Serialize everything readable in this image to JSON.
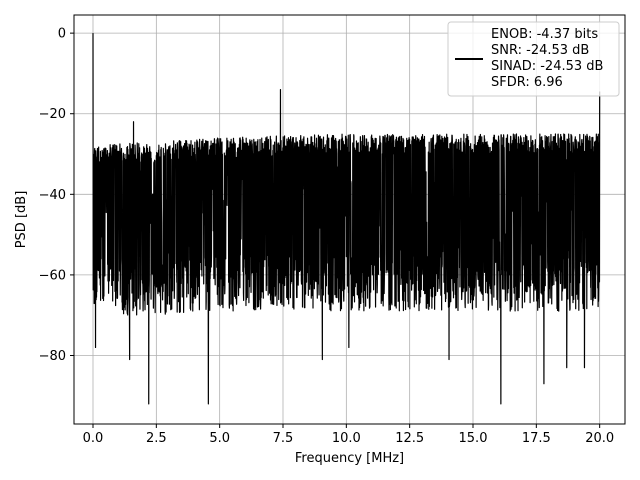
{
  "chart_data": {
    "type": "line",
    "title": "",
    "xlabel": "Frequency [MHz]",
    "ylabel": "PSD [dB]",
    "xlim": [
      -0.75,
      21.0
    ],
    "ylim": [
      -97,
      4.5
    ],
    "x_ticks": [
      0.0,
      2.5,
      5.0,
      7.5,
      10.0,
      12.5,
      15.0,
      17.5,
      20.0
    ],
    "x_tick_labels": [
      "0.0",
      "2.5",
      "5.0",
      "7.5",
      "10.0",
      "12.5",
      "15.0",
      "17.5",
      "20.0"
    ],
    "y_ticks": [
      0,
      -20,
      -40,
      -60,
      -80
    ],
    "y_tick_labels": [
      "0",
      "−20",
      "−40",
      "−60",
      "−80"
    ],
    "grid": true,
    "line_color": "#000000",
    "legend": {
      "placement": "top-right",
      "entries": [
        "ENOB: -4.37 bits",
        "SNR: -24.53 dB",
        "SINAD: -24.53 dB",
        "SFDR: 6.96"
      ]
    },
    "series": [
      {
        "envelope": {
          "x": [
            0.0,
            1.0,
            2.5,
            5.0,
            7.5,
            10.0,
            12.5,
            15.0,
            17.5,
            20.0
          ],
          "upper": [
            -28,
            -27.5,
            -27,
            -26,
            -25.5,
            -25,
            -25,
            -25,
            -25,
            -25
          ],
          "lower": [
            -62,
            -63,
            -63,
            -62,
            -62,
            -62,
            -62,
            -62,
            -62,
            -62
          ]
        },
        "peaks": [
          {
            "x": 0.0,
            "y": 0.0
          },
          {
            "x": 1.6,
            "y": -22
          },
          {
            "x": 7.4,
            "y": -14
          },
          {
            "x": 20.0,
            "y": -14.5
          }
        ],
        "dips": [
          {
            "x": 0.1,
            "y": -78
          },
          {
            "x": 1.45,
            "y": -81
          },
          {
            "x": 2.2,
            "y": -92
          },
          {
            "x": 4.55,
            "y": -92
          },
          {
            "x": 9.05,
            "y": -81
          },
          {
            "x": 10.1,
            "y": -78
          },
          {
            "x": 14.05,
            "y": -81
          },
          {
            "x": 16.1,
            "y": -92
          },
          {
            "x": 17.8,
            "y": -87
          },
          {
            "x": 18.7,
            "y": -83
          },
          {
            "x": 19.4,
            "y": -83
          }
        ]
      }
    ]
  }
}
